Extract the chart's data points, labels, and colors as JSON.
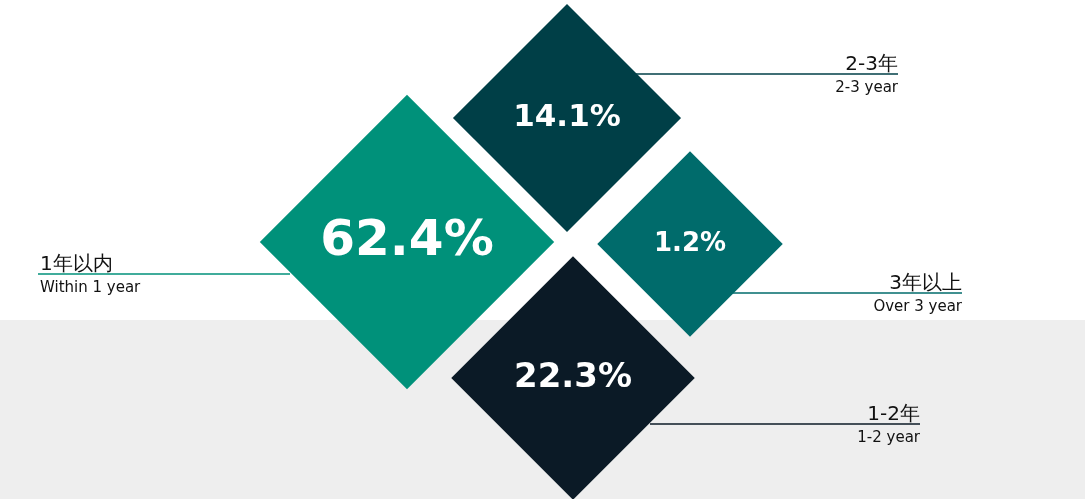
{
  "chart_data": {
    "type": "other",
    "categories": [
      "1年以内\nWithin 1 year",
      "2-3年\n2-3 year",
      "3年以上\nOver 3 year",
      "1-2年\n1-2 year"
    ],
    "values": [
      62.4,
      14.1,
      1.2,
      22.3
    ],
    "value_labels": [
      "62.4%",
      "14.1%",
      "1.2%",
      "22.3%"
    ],
    "colors": [
      "#00917a",
      "#003f47",
      "#006b6b",
      "#0b1a26"
    ],
    "data_labels": true
  }
}
